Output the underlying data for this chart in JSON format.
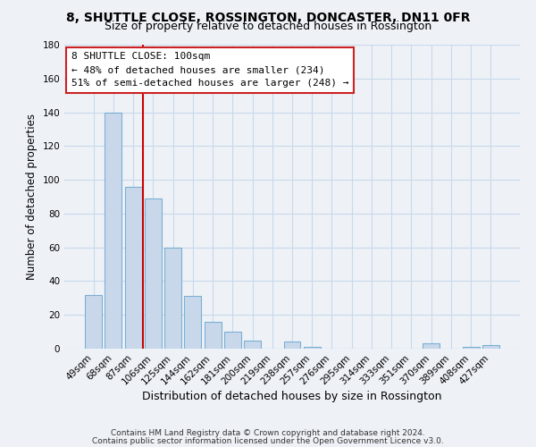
{
  "title": "8, SHUTTLE CLOSE, ROSSINGTON, DONCASTER, DN11 0FR",
  "subtitle": "Size of property relative to detached houses in Rossington",
  "xlabel": "Distribution of detached houses by size in Rossington",
  "ylabel": "Number of detached properties",
  "footer_line1": "Contains HM Land Registry data © Crown copyright and database right 2024.",
  "footer_line2": "Contains public sector information licensed under the Open Government Licence v3.0.",
  "bar_labels": [
    "49sqm",
    "68sqm",
    "87sqm",
    "106sqm",
    "125sqm",
    "144sqm",
    "162sqm",
    "181sqm",
    "200sqm",
    "219sqm",
    "238sqm",
    "257sqm",
    "276sqm",
    "295sqm",
    "314sqm",
    "333sqm",
    "351sqm",
    "370sqm",
    "389sqm",
    "408sqm",
    "427sqm"
  ],
  "bar_values": [
    32,
    140,
    96,
    89,
    60,
    31,
    16,
    10,
    5,
    0,
    4,
    1,
    0,
    0,
    0,
    0,
    0,
    3,
    0,
    1,
    2
  ],
  "bar_color": "#c8d8ea",
  "bar_edge_color": "#7bafd4",
  "vline_color": "#cc0000",
  "vline_index": 3,
  "ylim": [
    0,
    180
  ],
  "yticks": [
    0,
    20,
    40,
    60,
    80,
    100,
    120,
    140,
    160,
    180
  ],
  "annotation_title": "8 SHUTTLE CLOSE: 100sqm",
  "annotation_line1": "← 48% of detached houses are smaller (234)",
  "annotation_line2": "51% of semi-detached houses are larger (248) →",
  "grid_color": "#c8d8ea",
  "background_color": "#eef2f7",
  "title_fontsize": 10,
  "subtitle_fontsize": 9,
  "ylabel_fontsize": 8.5,
  "xlabel_fontsize": 9,
  "tick_fontsize": 7.5,
  "annot_fontsize": 8,
  "footer_fontsize": 6.5
}
